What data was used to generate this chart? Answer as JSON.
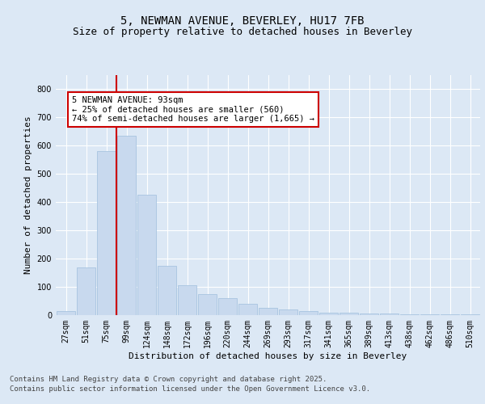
{
  "title_line1": "5, NEWMAN AVENUE, BEVERLEY, HU17 7FB",
  "title_line2": "Size of property relative to detached houses in Beverley",
  "xlabel": "Distribution of detached houses by size in Beverley",
  "ylabel": "Number of detached properties",
  "categories": [
    "27sqm",
    "51sqm",
    "75sqm",
    "99sqm",
    "124sqm",
    "148sqm",
    "172sqm",
    "196sqm",
    "220sqm",
    "244sqm",
    "269sqm",
    "293sqm",
    "317sqm",
    "341sqm",
    "365sqm",
    "389sqm",
    "413sqm",
    "438sqm",
    "462sqm",
    "486sqm",
    "510sqm"
  ],
  "values": [
    15,
    170,
    580,
    635,
    425,
    175,
    105,
    75,
    60,
    40,
    25,
    20,
    15,
    10,
    8,
    5,
    5,
    3,
    3,
    2,
    2
  ],
  "bar_color": "#c8d9ee",
  "bar_edge_color": "#a8c4e0",
  "vline_index": 2.5,
  "vline_color": "#cc0000",
  "annotation_text": "5 NEWMAN AVENUE: 93sqm\n← 25% of detached houses are smaller (560)\n74% of semi-detached houses are larger (1,665) →",
  "annotation_box_facecolor": "#ffffff",
  "annotation_box_edgecolor": "#cc0000",
  "ylim": [
    0,
    850
  ],
  "yticks": [
    0,
    100,
    200,
    300,
    400,
    500,
    600,
    700,
    800
  ],
  "footer_line1": "Contains HM Land Registry data © Crown copyright and database right 2025.",
  "footer_line2": "Contains public sector information licensed under the Open Government Licence v3.0.",
  "background_color": "#dce8f5",
  "plot_bg_color": "#dce8f5",
  "grid_color": "#ffffff",
  "title_fontsize": 10,
  "subtitle_fontsize": 9,
  "axis_label_fontsize": 8,
  "tick_fontsize": 7,
  "annotation_fontsize": 7.5,
  "footer_fontsize": 6.5
}
